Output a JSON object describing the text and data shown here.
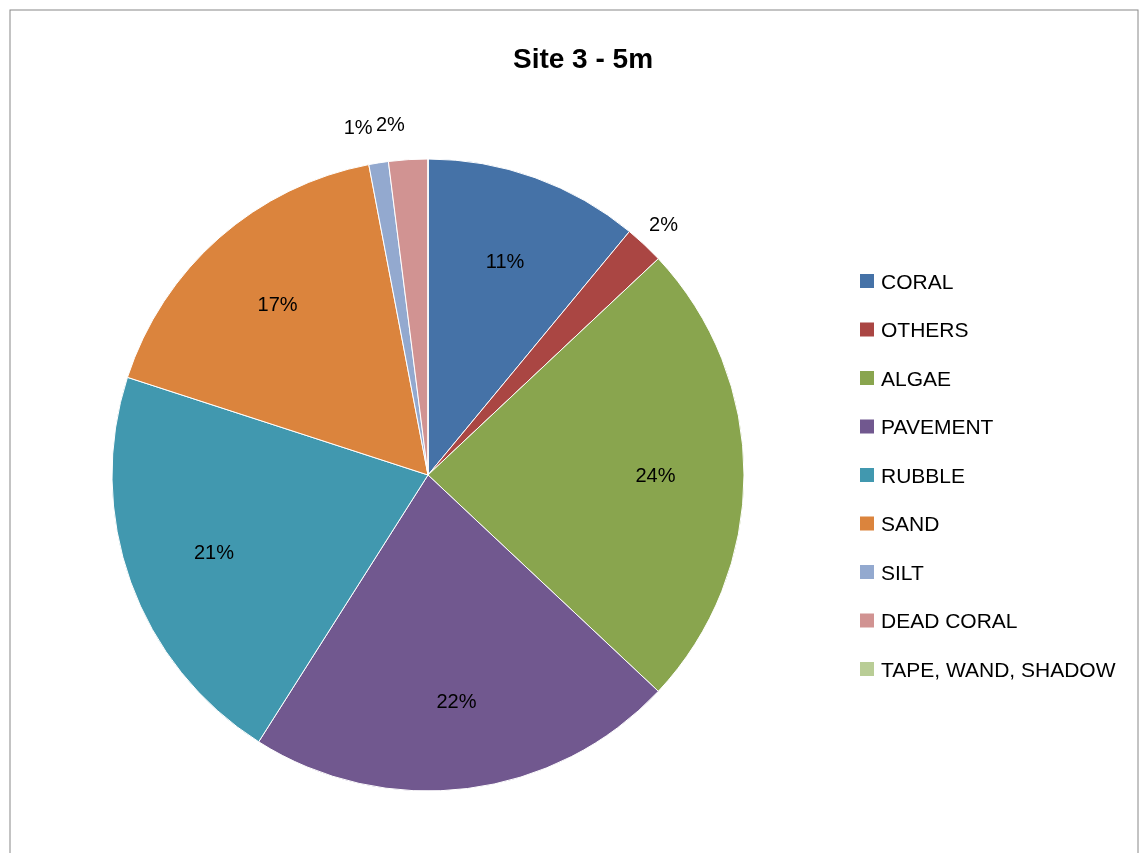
{
  "chart_data": {
    "type": "pie",
    "title": "Site 3 - 5m",
    "categories": [
      "CORAL",
      "OTHERS",
      "ALGAE",
      "PAVEMENT",
      "RUBBLE",
      "SAND",
      "SILT",
      "DEAD CORAL",
      "TAPE, WAND, SHADOW"
    ],
    "values": [
      11,
      2,
      24,
      22,
      21,
      17,
      1,
      2,
      0
    ],
    "colors": [
      "#4572a7",
      "#aa4643",
      "#89a54e",
      "#71588f",
      "#4198af",
      "#db843d",
      "#93a9cf",
      "#d19392",
      "#b9cd96"
    ],
    "value_labels": [
      "11%",
      "2%",
      "24%",
      "22%",
      "21%",
      "17%",
      "1%",
      "2%",
      null
    ],
    "legend": "right"
  }
}
